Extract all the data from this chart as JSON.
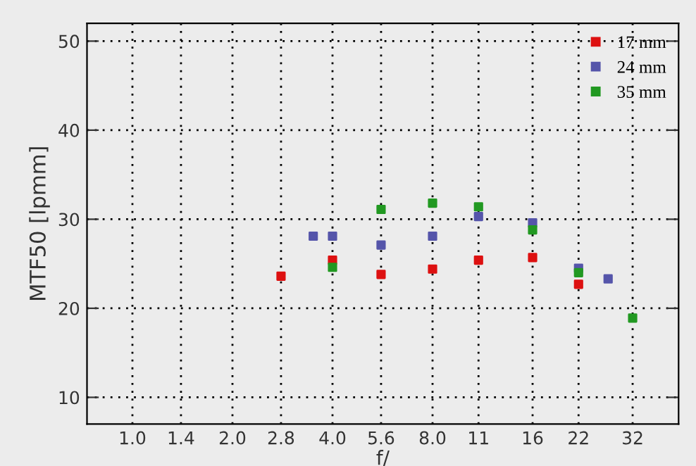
{
  "chart_data": {
    "type": "scatter",
    "xlabel": "f/",
    "ylabel": "MTF50 [lpmm]",
    "log": "x",
    "marker": "square",
    "grid": true,
    "legend": "top right",
    "xlim": [
      0.73,
      44
    ],
    "ylim": [
      7,
      52
    ],
    "xticks": [
      {
        "value": 1,
        "label": "1.0"
      },
      1.4,
      {
        "value": 2,
        "label": "2.0"
      },
      2.8,
      {
        "value": 4,
        "label": "4.0"
      },
      5.6,
      {
        "value": 8,
        "label": "8.0"
      },
      11,
      16,
      22,
      32
    ],
    "yticks": [
      10,
      20,
      30,
      40,
      50
    ],
    "series": [
      {
        "name": "17 mm",
        "color": "#dd1111",
        "x": [
          2.8,
          4,
          5.6,
          8,
          11,
          16,
          22
        ],
        "values": [
          23.6,
          25.4,
          23.8,
          24.4,
          25.4,
          25.7,
          22.7
        ]
      },
      {
        "name": "24 mm",
        "color": "#5555aa",
        "x": [
          3.5,
          4,
          5.6,
          8,
          11,
          16,
          22,
          27
        ],
        "values": [
          28.1,
          28.1,
          27.1,
          28.1,
          30.3,
          29.6,
          24.5,
          23.3
        ]
      },
      {
        "name": "35 mm",
        "color": "#229922",
        "x": [
          4,
          5.6,
          8,
          11,
          16,
          22,
          32
        ],
        "values": [
          24.6,
          31.1,
          31.8,
          31.4,
          28.8,
          24.0,
          18.9
        ]
      }
    ]
  }
}
